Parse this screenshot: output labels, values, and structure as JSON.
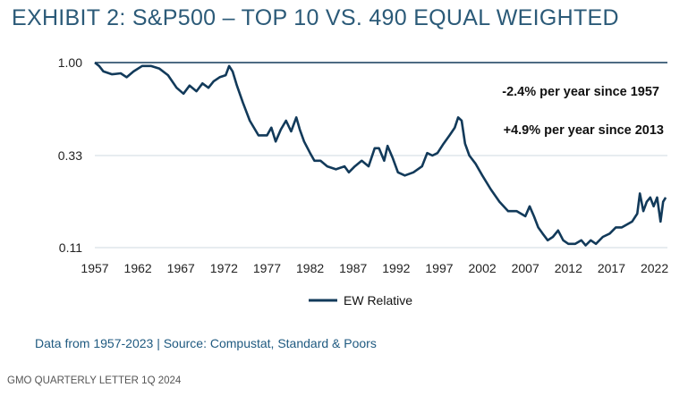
{
  "colors": {
    "title": "#2b5a78",
    "line": "#123a5a",
    "grid": "#cfd9e2",
    "source": "#1f5a80"
  },
  "header": {
    "title": "EXHIBIT 2: S&P500 – TOP 10 VS. 490 EQUAL WEIGHTED"
  },
  "chart_data": {
    "type": "line",
    "title": "",
    "xlabel": "",
    "ylabel": "",
    "y_scale": "log",
    "xlim": [
      1957,
      2023.5
    ],
    "ylim": [
      0.11,
      1.0
    ],
    "y_ticks": [
      1.0,
      0.33,
      0.11
    ],
    "y_tick_labels": [
      "1.00",
      "0.33",
      "0.11"
    ],
    "x_ticks": [
      1957,
      1962,
      1967,
      1972,
      1977,
      1982,
      1987,
      1992,
      1997,
      2002,
      2007,
      2012,
      2017,
      2022
    ],
    "x_tick_labels": [
      "1957",
      "1962",
      "1967",
      "1972",
      "1977",
      "1982",
      "1987",
      "1992",
      "1997",
      "2002",
      "2007",
      "2012",
      "2017",
      "2022"
    ],
    "grid": true,
    "legend_position": "bottom",
    "annotations": [
      "-2.4% per year since 1957",
      "+4.9% per year since 2013"
    ],
    "series": [
      {
        "name": "EW Relative",
        "x": [
          1957.0,
          1957.5,
          1958.0,
          1959.0,
          1960.0,
          1960.7,
          1961.5,
          1962.5,
          1963.5,
          1964.5,
          1965.5,
          1966.5,
          1967.3,
          1968.0,
          1968.8,
          1969.5,
          1970.2,
          1970.8,
          1971.5,
          1972.2,
          1972.6,
          1973.0,
          1973.5,
          1974.2,
          1975.0,
          1976.0,
          1977.0,
          1977.5,
          1978.0,
          1978.6,
          1979.2,
          1979.8,
          1980.4,
          1980.8,
          1981.3,
          1982.0,
          1982.5,
          1983.2,
          1984.0,
          1985.0,
          1986.0,
          1986.5,
          1987.2,
          1988.0,
          1988.8,
          1989.5,
          1990.0,
          1990.6,
          1991.0,
          1991.6,
          1992.2,
          1993.0,
          1994.0,
          1995.0,
          1995.6,
          1996.2,
          1996.8,
          1997.5,
          1998.2,
          1998.8,
          1999.2,
          1999.6,
          2000.0,
          2000.5,
          2001.2,
          2002.0,
          2003.0,
          2004.0,
          2005.0,
          2006.0,
          2007.0,
          2007.5,
          2008.0,
          2008.5,
          2009.0,
          2009.6,
          2010.2,
          2010.8,
          2011.4,
          2012.0,
          2012.8,
          2013.5,
          2014.0,
          2014.6,
          2015.2,
          2016.0,
          2016.8,
          2017.5,
          2018.2,
          2018.8,
          2019.4,
          2020.0,
          2020.3,
          2020.7,
          2021.1,
          2021.5,
          2021.9,
          2022.3,
          2022.7,
          2023.0,
          2023.3
        ],
        "values": [
          1.0,
          0.96,
          0.9,
          0.87,
          0.88,
          0.84,
          0.9,
          0.96,
          0.96,
          0.93,
          0.86,
          0.74,
          0.69,
          0.76,
          0.71,
          0.78,
          0.74,
          0.8,
          0.84,
          0.86,
          0.96,
          0.9,
          0.76,
          0.62,
          0.5,
          0.42,
          0.42,
          0.46,
          0.39,
          0.45,
          0.5,
          0.44,
          0.52,
          0.45,
          0.39,
          0.34,
          0.31,
          0.31,
          0.29,
          0.28,
          0.29,
          0.27,
          0.29,
          0.31,
          0.29,
          0.36,
          0.36,
          0.31,
          0.37,
          0.32,
          0.27,
          0.26,
          0.27,
          0.29,
          0.34,
          0.33,
          0.34,
          0.38,
          0.42,
          0.46,
          0.52,
          0.5,
          0.38,
          0.33,
          0.3,
          0.26,
          0.22,
          0.19,
          0.17,
          0.17,
          0.16,
          0.18,
          0.16,
          0.14,
          0.13,
          0.12,
          0.125,
          0.135,
          0.12,
          0.115,
          0.115,
          0.12,
          0.113,
          0.12,
          0.115,
          0.125,
          0.13,
          0.14,
          0.14,
          0.145,
          0.15,
          0.165,
          0.21,
          0.17,
          0.19,
          0.2,
          0.18,
          0.2,
          0.15,
          0.19,
          0.2
        ]
      }
    ]
  },
  "source": {
    "text": "Data from 1957-2023 | Source: Compustat, Standard & Poors"
  },
  "footer": {
    "text": "GMO QUARTERLY LETTER 1Q 2024"
  }
}
